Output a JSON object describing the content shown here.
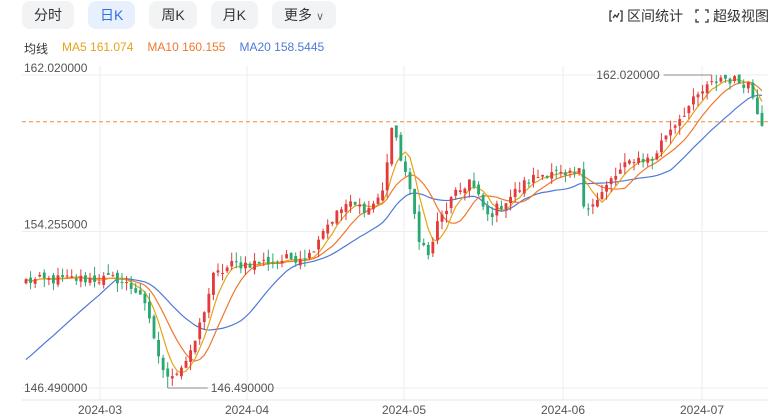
{
  "tabs": [
    {
      "label": "分时",
      "active": false
    },
    {
      "label": "日K",
      "active": true
    },
    {
      "label": "周K",
      "active": false
    },
    {
      "label": "月K",
      "active": false
    },
    {
      "label": "更多",
      "active": false
    }
  ],
  "tools": {
    "range_stats": "区间统计",
    "super_view": "超级视图"
  },
  "legend": {
    "label": "均线",
    "ma5": "MA5 161.074",
    "ma10": "MA10 160.155",
    "ma20": "MA20 158.5445"
  },
  "colors": {
    "up": "#e23b3b",
    "down": "#2aa871",
    "ma5": "#e8a317",
    "ma10": "#f0782f",
    "ma20": "#4f79d8",
    "ref": "#f08a3a"
  },
  "chart_data": {
    "type": "candlestick",
    "ylim": [
      146.49,
      162.02
    ],
    "y_ticks": [
      "162.020000",
      "154.255000",
      "146.490000"
    ],
    "x_ticks": [
      "2024-03",
      "2024-04",
      "2024-05",
      "2024-06",
      "2024-07"
    ],
    "high_label": "162.020000",
    "low_label": "146.490000",
    "reference_price": 159.7,
    "ma20_start": 147.9
  }
}
